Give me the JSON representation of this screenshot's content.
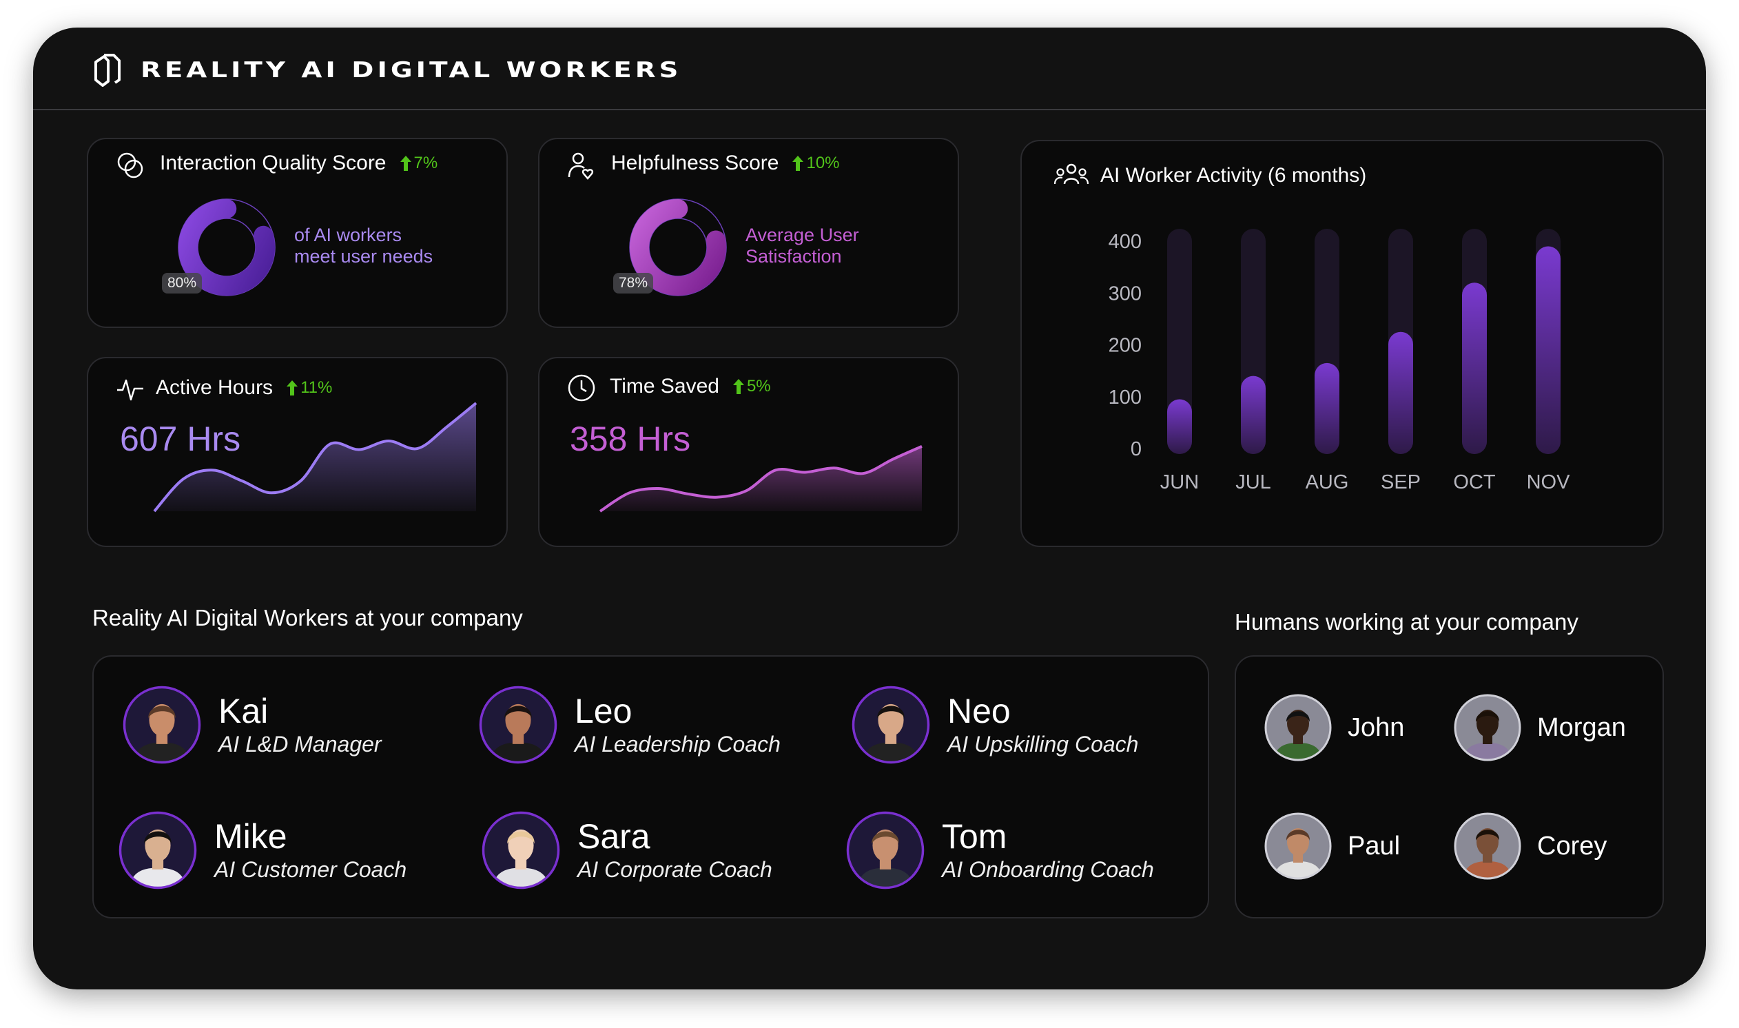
{
  "header": {
    "title": "Reality AI Digital Workers",
    "logo_icon": "reality-logo-icon"
  },
  "cards": {
    "interaction": {
      "title": "Interaction Quality Score",
      "delta": "7%",
      "percent": 80,
      "percent_label": "80%",
      "desc_line1": "of AI workers",
      "desc_line2": "meet user needs",
      "icon": "rings-icon",
      "color": "#a98af0"
    },
    "helpfulness": {
      "title": "Helpfulness Score",
      "delta": "10%",
      "percent": 78,
      "percent_label": "78%",
      "desc_line1": "Average User",
      "desc_line2": "Satisfaction",
      "icon": "user-heart-icon",
      "color": "#c45fd4"
    },
    "active_hours": {
      "title": "Active Hours",
      "delta": "11%",
      "value": "607 Hrs",
      "icon": "pulse-icon",
      "trend": [
        0,
        30,
        38,
        28,
        17,
        28,
        62,
        57,
        65,
        58,
        78,
        100
      ],
      "color": "#9c7cf4"
    },
    "time_saved": {
      "title": "Time Saved",
      "delta": "5%",
      "value": "358 Hrs",
      "icon": "clock-icon",
      "trend": [
        0,
        17,
        21,
        16,
        13,
        19,
        38,
        36,
        40,
        35,
        48,
        60
      ],
      "color": "#c45fd4"
    }
  },
  "chart_data": {
    "type": "bar",
    "title": "AI Worker Activity (6 months)",
    "categories": [
      "JUN",
      "JUL",
      "AUG",
      "SEP",
      "OCT",
      "NOV"
    ],
    "values": [
      95,
      140,
      165,
      225,
      320,
      390
    ],
    "yticks": [
      "0",
      "100",
      "200",
      "300",
      "400"
    ],
    "ylim": [
      0,
      400
    ],
    "xlabel": "",
    "ylabel": "",
    "color": "#7b3fd0"
  },
  "workers": {
    "title": "Reality AI Digital Workers at your company",
    "items": [
      {
        "name": "Kai",
        "role": "AI L&D Manager"
      },
      {
        "name": "Leo",
        "role": "AI Leadership Coach"
      },
      {
        "name": "Neo",
        "role": "AI Upskilling Coach"
      },
      {
        "name": "Mike",
        "role": "AI Customer Coach"
      },
      {
        "name": "Sara",
        "role": "AI Corporate Coach"
      },
      {
        "name": "Tom",
        "role": "AI Onboarding Coach"
      }
    ]
  },
  "humans": {
    "title": "Humans working at your company",
    "items": [
      {
        "name": "John"
      },
      {
        "name": "Morgan"
      },
      {
        "name": "Paul"
      },
      {
        "name": "Corey"
      }
    ]
  }
}
